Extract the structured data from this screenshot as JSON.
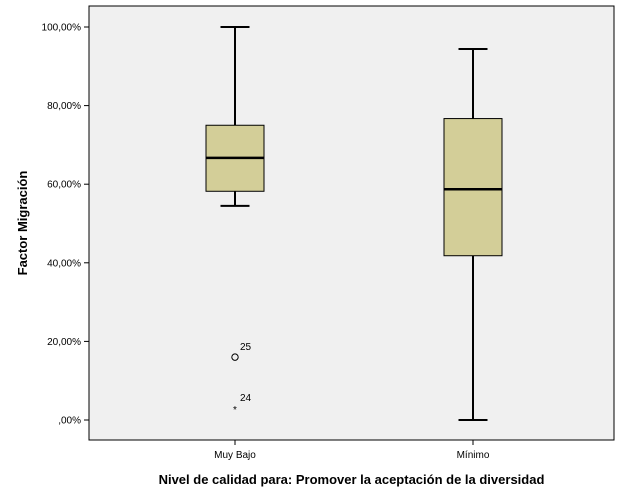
{
  "chart_data": {
    "type": "boxplot",
    "xlabel": "Nivel de calidad para: Promover la aceptación de la diversidad",
    "ylabel": "Factor Migración",
    "ylim": [
      0,
      100
    ],
    "y_ticks": [
      {
        "value": 100,
        "label": "100,00%"
      },
      {
        "value": 80,
        "label": "80,00%"
      },
      {
        "value": 60,
        "label": "60,00%"
      },
      {
        "value": 40,
        "label": "40,00%"
      },
      {
        "value": 20,
        "label": "20,00%"
      },
      {
        "value": 0,
        "label": ",00%"
      }
    ],
    "categories": [
      "Muy Bajo",
      "Mínimo"
    ],
    "boxes": [
      {
        "category": "Muy Bajo",
        "whisker_low": 54.5,
        "q1": 58.2,
        "median": 66.7,
        "q3": 75.0,
        "whisker_high": 100.0,
        "outliers": [
          {
            "value": 16.0,
            "marker": "circle",
            "label": "25"
          },
          {
            "value": 3.1,
            "marker": "star",
            "label": "24"
          }
        ]
      },
      {
        "category": "Mínimo",
        "whisker_low": 0.0,
        "q1": 41.8,
        "median": 58.7,
        "q3": 76.7,
        "whisker_high": 94.4,
        "outliers": []
      }
    ],
    "grid": false,
    "colors": {
      "plot_background": "#f0f0f0",
      "box_fill": "#d3ce98",
      "line": "#000000"
    }
  }
}
